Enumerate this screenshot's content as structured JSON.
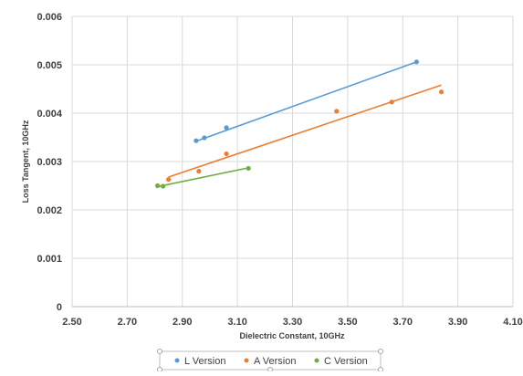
{
  "chart_data": {
    "type": "scatter",
    "xlabel": "Dielectric Constant, 10GHz",
    "ylabel": "Loss Tangent, 10GHz",
    "xlim": [
      2.5,
      4.1
    ],
    "ylim": [
      0,
      0.006
    ],
    "x_ticks": [
      "2.50",
      "2.70",
      "2.90",
      "3.10",
      "3.30",
      "3.50",
      "3.70",
      "3.90",
      "4.10"
    ],
    "y_ticks": [
      "0",
      "0.001",
      "0.002",
      "0.003",
      "0.004",
      "0.005",
      "0.006"
    ],
    "grid": true,
    "legend_position": "bottom",
    "series": [
      {
        "name": "L Version",
        "color": "#5b9bd5",
        "points": [
          [
            2.95,
            0.00343
          ],
          [
            2.98,
            0.00349
          ],
          [
            3.06,
            0.0037
          ],
          [
            3.75,
            0.00506
          ]
        ],
        "trendline": [
          [
            2.95,
            0.00342
          ],
          [
            3.75,
            0.00506
          ]
        ]
      },
      {
        "name": "A Version",
        "color": "#ed7d31",
        "points": [
          [
            2.85,
            0.00263
          ],
          [
            2.96,
            0.0028
          ],
          [
            3.06,
            0.00316
          ],
          [
            3.46,
            0.00404
          ],
          [
            3.66,
            0.00423
          ],
          [
            3.84,
            0.00444
          ]
        ],
        "trendline": [
          [
            2.85,
            0.00268
          ],
          [
            3.84,
            0.00458
          ]
        ]
      },
      {
        "name": "C Version",
        "color": "#70ad47",
        "points": [
          [
            2.81,
            0.0025
          ],
          [
            2.83,
            0.00249
          ],
          [
            3.14,
            0.00286
          ]
        ],
        "trendline": [
          [
            2.81,
            0.00248
          ],
          [
            3.14,
            0.00287
          ]
        ]
      }
    ]
  }
}
